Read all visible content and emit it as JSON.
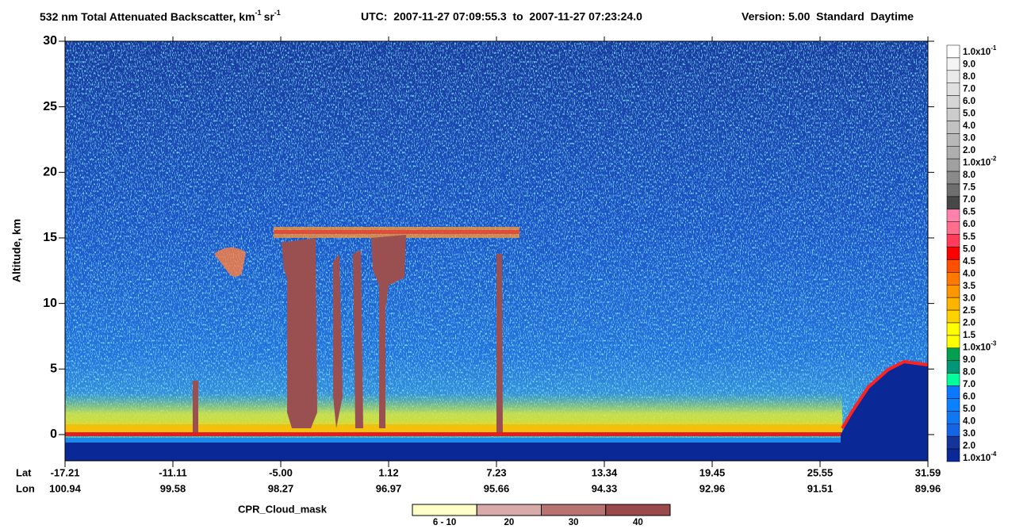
{
  "chart_data": {
    "type": "heatmap",
    "title": {
      "text": "532 nm Total Attenuated Backscatter, km",
      "exp1": "-1",
      "unit2": "sr",
      "exp2": "-1"
    },
    "time_range": "UTC:  2007-11-27 07:09:55.3  to  2007-11-27 07:23:24.0",
    "version": "Version: 5.00  Standard  Daytime",
    "ylabel": "Altitude, km",
    "ylim": [
      -2,
      30
    ],
    "yticks": [
      0,
      5,
      10,
      15,
      20,
      25,
      30
    ],
    "x_row_names": [
      "Lat",
      "Lon"
    ],
    "lat": [
      "-17.21",
      "-11.11",
      "-5.00",
      "1.12",
      "7.23",
      "13.34",
      "19.45",
      "25.55",
      "31.59"
    ],
    "lon": [
      "100.94",
      "99.58",
      "98.27",
      "96.97",
      "95.66",
      "94.33",
      "92.96",
      "91.51",
      "89.96"
    ],
    "colorbar": {
      "labels": [
        {
          "text": "1.0x10",
          "sup": "-1"
        },
        "9.0",
        "8.0",
        "7.0",
        "6.0",
        "5.0",
        "4.0",
        "3.0",
        "2.0",
        {
          "text": "1.0x10",
          "sup": "-2"
        },
        "8.0",
        "7.5",
        "7.0",
        "6.5",
        "6.0",
        "5.5",
        "5.0",
        "4.5",
        "4.0",
        "3.5",
        "3.0",
        "2.5",
        "2.0",
        "1.5",
        {
          "text": "1.0x10",
          "sup": "-3"
        },
        "9.0",
        "8.0",
        "7.0",
        "6.0",
        "5.0",
        "4.0",
        "3.0",
        "2.0",
        {
          "text": "1.0x10",
          "sup": "-4"
        }
      ],
      "colors": [
        "#ffffff",
        "#f4f4f4",
        "#eaeaea",
        "#e0e0e0",
        "#d6d6d6",
        "#cccccc",
        "#c2c2c2",
        "#b8b8b8",
        "#aeaeae",
        "#a0a0a0",
        "#8a8a8a",
        "#6e6e6e",
        "#474747",
        "#ff82aa",
        "#ff6e8c",
        "#ff3c5a",
        "#ff0000",
        "#ff5000",
        "#ff7800",
        "#ff9600",
        "#ffb400",
        "#ffd200",
        "#ffff00",
        "#ffff00",
        "#00a050",
        "#009678",
        "#00ff9a",
        "#0a78ff",
        "#0a82ff",
        "#0f78f0",
        "#1464e6",
        "#14349a",
        "#0a2896"
      ]
    },
    "cloud_mask": {
      "title": "CPR_Cloud_mask",
      "labels": [
        "6 - 10",
        "20",
        "30",
        "40"
      ],
      "colors": [
        "#ffffc8",
        "#d8aaaa",
        "#b87272",
        "#9a4a4a"
      ]
    }
  }
}
